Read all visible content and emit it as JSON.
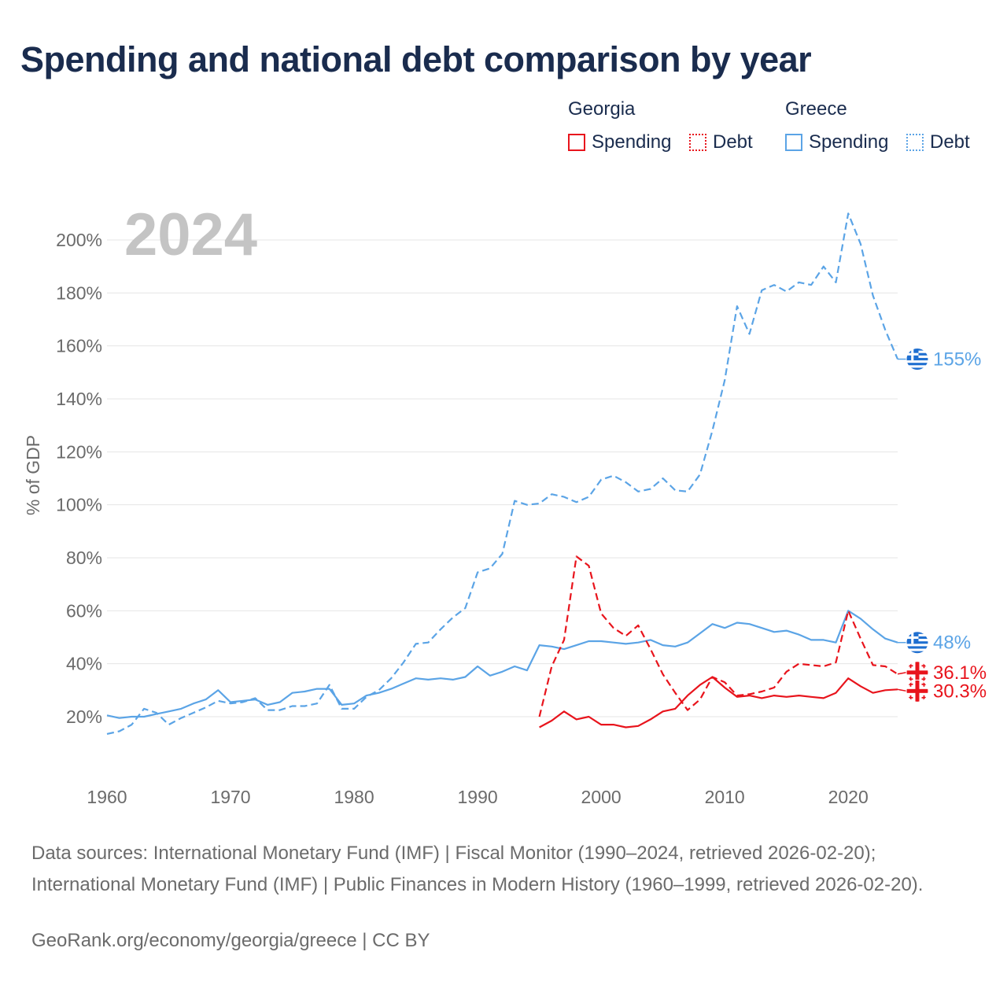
{
  "title": "Spending and national debt comparison by year",
  "legend": {
    "georgia_label": "Georgia",
    "greece_label": "Greece",
    "spending_label": "Spending",
    "debt_label": "Debt"
  },
  "colors": {
    "georgia": "#e8141c",
    "greece": "#5ba4e6"
  },
  "chart_data": {
    "type": "line",
    "year_watermark": "2024",
    "ylabel": "% of GDP",
    "xlim": [
      1960,
      2024
    ],
    "ylim": [
      0,
      215
    ],
    "x_ticks": [
      {
        "value": 1960,
        "label": "1960"
      },
      {
        "value": 1970,
        "label": "1970"
      },
      {
        "value": 1980,
        "label": "1980"
      },
      {
        "value": 1990,
        "label": "1990"
      },
      {
        "value": 2000,
        "label": "2000"
      },
      {
        "value": 2010,
        "label": "2010"
      },
      {
        "value": 2020,
        "label": "2020"
      }
    ],
    "y_ticks": [
      {
        "value": 20,
        "label": "20%"
      },
      {
        "value": 40,
        "label": "40%"
      },
      {
        "value": 60,
        "label": "60%"
      },
      {
        "value": 80,
        "label": "80%"
      },
      {
        "value": 100,
        "label": "100%"
      },
      {
        "value": 120,
        "label": "120%"
      },
      {
        "value": 140,
        "label": "140%"
      },
      {
        "value": 160,
        "label": "160%"
      },
      {
        "value": 180,
        "label": "180%"
      },
      {
        "value": 200,
        "label": "200%"
      }
    ],
    "series": [
      {
        "name": "Greece Debt",
        "country": "greece",
        "metric": "debt",
        "style": "dashed",
        "end_label": "155%",
        "points": [
          [
            1960,
            13.5
          ],
          [
            1961,
            14.5
          ],
          [
            1962,
            17
          ],
          [
            1963,
            23
          ],
          [
            1964,
            21.5
          ],
          [
            1965,
            17
          ],
          [
            1966,
            19.5
          ],
          [
            1967,
            21.5
          ],
          [
            1968,
            23.5
          ],
          [
            1969,
            26
          ],
          [
            1970,
            25
          ],
          [
            1971,
            25.5
          ],
          [
            1972,
            27
          ],
          [
            1973,
            22.5
          ],
          [
            1974,
            22.5
          ],
          [
            1975,
            24
          ],
          [
            1976,
            24
          ],
          [
            1977,
            25
          ],
          [
            1978,
            32
          ],
          [
            1979,
            23
          ],
          [
            1980,
            23
          ],
          [
            1981,
            27.5
          ],
          [
            1982,
            30
          ],
          [
            1983,
            34.5
          ],
          [
            1984,
            40.5
          ],
          [
            1985,
            47.5
          ],
          [
            1986,
            48
          ],
          [
            1987,
            53
          ],
          [
            1988,
            57.5
          ],
          [
            1989,
            61
          ],
          [
            1990,
            74.5
          ],
          [
            1991,
            76
          ],
          [
            1992,
            81.5
          ],
          [
            1993,
            101.5
          ],
          [
            1994,
            100
          ],
          [
            1995,
            100.5
          ],
          [
            1996,
            104
          ],
          [
            1997,
            103
          ],
          [
            1998,
            101
          ],
          [
            1999,
            103
          ],
          [
            2000,
            109.5
          ],
          [
            2001,
            111
          ],
          [
            2002,
            108.5
          ],
          [
            2003,
            105
          ],
          [
            2004,
            106
          ],
          [
            2005,
            110
          ],
          [
            2006,
            105.5
          ],
          [
            2007,
            105
          ],
          [
            2008,
            111.5
          ],
          [
            2009,
            128
          ],
          [
            2010,
            147
          ],
          [
            2011,
            175
          ],
          [
            2012,
            164.5
          ],
          [
            2013,
            181
          ],
          [
            2014,
            183
          ],
          [
            2015,
            180.5
          ],
          [
            2016,
            184
          ],
          [
            2017,
            183
          ],
          [
            2018,
            190
          ],
          [
            2019,
            184
          ],
          [
            2020,
            210
          ],
          [
            2021,
            198.5
          ],
          [
            2022,
            179
          ],
          [
            2023,
            166
          ],
          [
            2024,
            155
          ]
        ]
      },
      {
        "name": "Greece Spending",
        "country": "greece",
        "metric": "spending",
        "style": "solid",
        "end_label": "48%",
        "points": [
          [
            1960,
            20.5
          ],
          [
            1961,
            19.5
          ],
          [
            1962,
            20
          ],
          [
            1963,
            20
          ],
          [
            1964,
            21
          ],
          [
            1965,
            22
          ],
          [
            1966,
            23
          ],
          [
            1967,
            25
          ],
          [
            1968,
            26.5
          ],
          [
            1969,
            30
          ],
          [
            1970,
            25.5
          ],
          [
            1971,
            26
          ],
          [
            1972,
            26.5
          ],
          [
            1973,
            24.5
          ],
          [
            1974,
            25.5
          ],
          [
            1975,
            29
          ],
          [
            1976,
            29.5
          ],
          [
            1977,
            30.5
          ],
          [
            1978,
            30.5
          ],
          [
            1979,
            24.5
          ],
          [
            1980,
            25
          ],
          [
            1981,
            28
          ],
          [
            1982,
            29
          ],
          [
            1983,
            30.5
          ],
          [
            1984,
            32.5
          ],
          [
            1985,
            34.5
          ],
          [
            1986,
            34
          ],
          [
            1987,
            34.5
          ],
          [
            1988,
            34
          ],
          [
            1989,
            35
          ],
          [
            1990,
            39
          ],
          [
            1991,
            35.5
          ],
          [
            1992,
            37
          ],
          [
            1993,
            39
          ],
          [
            1994,
            37.5
          ],
          [
            1995,
            47
          ],
          [
            1996,
            46.5
          ],
          [
            1997,
            45.5
          ],
          [
            1998,
            47
          ],
          [
            1999,
            48.5
          ],
          [
            2000,
            48.5
          ],
          [
            2001,
            48
          ],
          [
            2002,
            47.5
          ],
          [
            2003,
            48
          ],
          [
            2004,
            49
          ],
          [
            2005,
            47
          ],
          [
            2006,
            46.5
          ],
          [
            2007,
            48
          ],
          [
            2008,
            51.5
          ],
          [
            2009,
            55
          ],
          [
            2010,
            53.5
          ],
          [
            2011,
            55.5
          ],
          [
            2012,
            55
          ],
          [
            2013,
            53.5
          ],
          [
            2014,
            52
          ],
          [
            2015,
            52.5
          ],
          [
            2016,
            51
          ],
          [
            2017,
            49
          ],
          [
            2018,
            49
          ],
          [
            2019,
            48
          ],
          [
            2020,
            60
          ],
          [
            2021,
            57
          ],
          [
            2022,
            53
          ],
          [
            2023,
            49.5
          ],
          [
            2024,
            48
          ]
        ]
      },
      {
        "name": "Georgia Debt",
        "country": "georgia",
        "metric": "debt",
        "style": "dashed",
        "end_label": "36.1%",
        "points": [
          [
            1995,
            20
          ],
          [
            1996,
            39
          ],
          [
            1997,
            49
          ],
          [
            1998,
            80.5
          ],
          [
            1999,
            77
          ],
          [
            2000,
            59
          ],
          [
            2001,
            53.5
          ],
          [
            2002,
            50.5
          ],
          [
            2003,
            54.5
          ],
          [
            2004,
            45.5
          ],
          [
            2005,
            36
          ],
          [
            2006,
            29
          ],
          [
            2007,
            22.5
          ],
          [
            2008,
            26.5
          ],
          [
            2009,
            35
          ],
          [
            2010,
            33
          ],
          [
            2011,
            28
          ],
          [
            2012,
            28.5
          ],
          [
            2013,
            29.5
          ],
          [
            2014,
            31
          ],
          [
            2015,
            37
          ],
          [
            2016,
            40
          ],
          [
            2017,
            39.5
          ],
          [
            2018,
            39
          ],
          [
            2019,
            40.5
          ],
          [
            2020,
            60
          ],
          [
            2021,
            49.5
          ],
          [
            2022,
            39.5
          ],
          [
            2023,
            39
          ],
          [
            2024,
            36.1
          ]
        ]
      },
      {
        "name": "Georgia Spending",
        "country": "georgia",
        "metric": "spending",
        "style": "solid",
        "end_label": "30.3%",
        "points": [
          [
            1995,
            16
          ],
          [
            1996,
            18.5
          ],
          [
            1997,
            22
          ],
          [
            1998,
            19
          ],
          [
            1999,
            20
          ],
          [
            2000,
            17
          ],
          [
            2001,
            17
          ],
          [
            2002,
            16
          ],
          [
            2003,
            16.5
          ],
          [
            2004,
            19
          ],
          [
            2005,
            22
          ],
          [
            2006,
            23
          ],
          [
            2007,
            28
          ],
          [
            2008,
            32
          ],
          [
            2009,
            35
          ],
          [
            2010,
            31
          ],
          [
            2011,
            27.5
          ],
          [
            2012,
            28
          ],
          [
            2013,
            27
          ],
          [
            2014,
            28
          ],
          [
            2015,
            27.5
          ],
          [
            2016,
            28
          ],
          [
            2017,
            27.5
          ],
          [
            2018,
            27
          ],
          [
            2019,
            29
          ],
          [
            2020,
            34.5
          ],
          [
            2021,
            31.5
          ],
          [
            2022,
            29
          ],
          [
            2023,
            30
          ],
          [
            2024,
            30.3
          ]
        ]
      }
    ]
  },
  "footer": {
    "sources": "Data sources: International Monetary Fund (IMF) | Fiscal Monitor (1990–2024, retrieved 2026-02-20); International Monetary Fund (IMF) | Public Finances in Modern History (1960–1999, retrieved 2026-02-20).",
    "credit": "GeoRank.org/economy/georgia/greece | CC BY"
  }
}
